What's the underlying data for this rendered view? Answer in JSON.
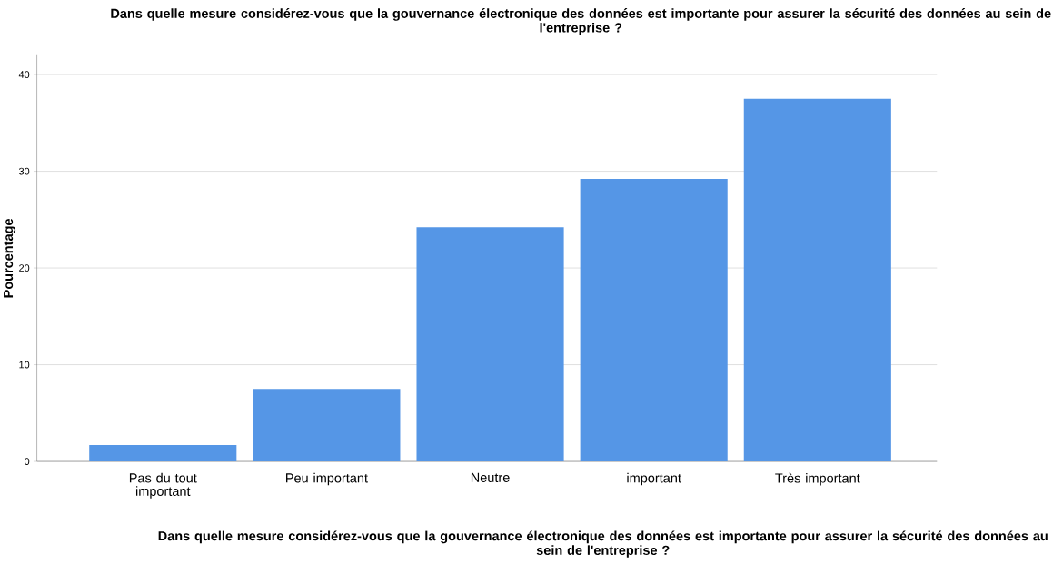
{
  "chart_data": {
    "type": "bar",
    "title": "Dans quelle mesure considérez-vous que la gouvernance électronique des données est importante pour assurer la sécurité des données au sein de l'entreprise ?",
    "xlabel": "Dans quelle mesure considérez-vous que la gouvernance électronique des données est importante pour assurer la sécurité des données au sein de l'entreprise ?",
    "ylabel": "Pourcentage",
    "categories": [
      "Pas du tout important",
      "Peu important",
      "Neutre",
      "important",
      "Très important"
    ],
    "values": [
      1.7,
      7.5,
      24.2,
      29.2,
      37.5
    ],
    "color": "#5596e6",
    "ylim": [
      0,
      42
    ],
    "yticks": [
      0,
      10,
      20,
      30,
      40
    ],
    "grid": "y"
  }
}
